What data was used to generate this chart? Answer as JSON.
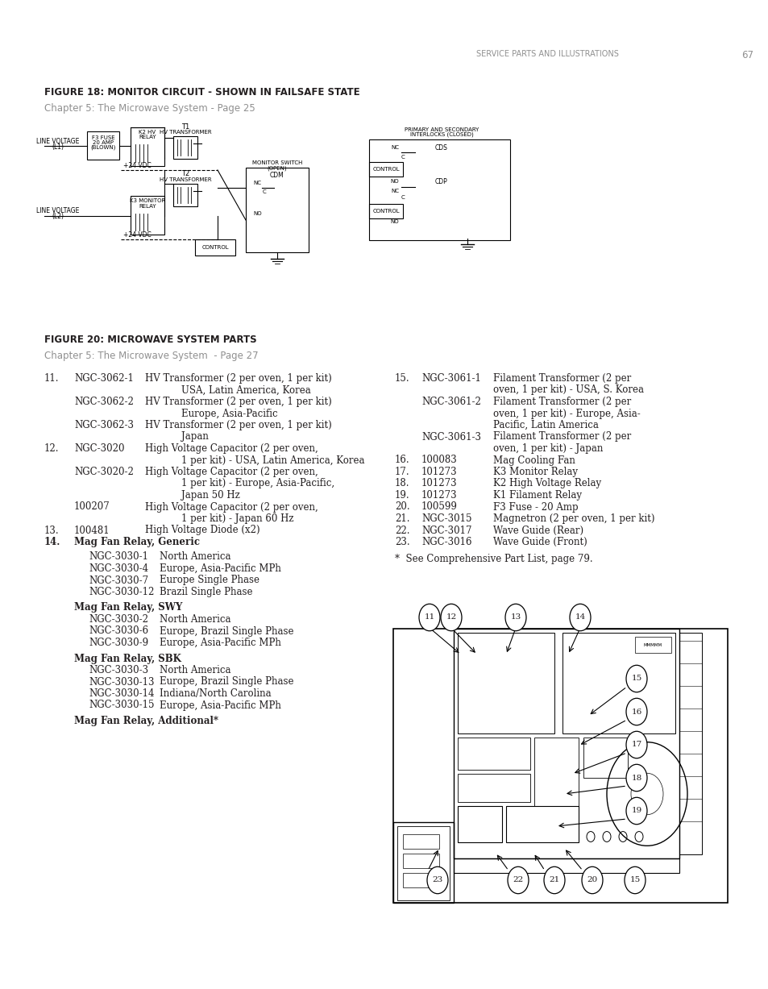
{
  "bg_color": "#ffffff",
  "text_color": "#231f20",
  "gray_color": "#909090",
  "header_text": "SERVICE PARTS AND ILLUSTRATIONS",
  "page_number": "67",
  "fig18_title": "FIGURE 18: MONITOR CIRCUIT - SHOWN IN FAILSAFE STATE",
  "fig18_subtitle": "Chapter 5: The Microwave System - Page 25",
  "fig20_title": "FIGURE 20: MICROWAVE SYSTEM PARTS",
  "fig20_subtitle": "Chapter 5: The Microwave System  - Page 27",
  "mag_generic_lines": [
    [
      "NGC-3030-1",
      "North America"
    ],
    [
      "NGC-3030-4",
      "Europe, Asia-Pacific MPh"
    ],
    [
      "NGC-3030-7",
      "Europe Single Phase"
    ],
    [
      "NGC-3030-12",
      "Brazil Single Phase"
    ]
  ],
  "mag_swy_lines": [
    [
      "NGC-3030-2",
      "North America"
    ],
    [
      "NGC-3030-6",
      "Europe, Brazil Single Phase"
    ],
    [
      "NGC-3030-9",
      "Europe, Asia-Pacific MPh"
    ]
  ],
  "mag_sbk_lines": [
    [
      "NGC-3030-3",
      "North America"
    ],
    [
      "NGC-3030-13",
      "Europe, Brazil Single Phase"
    ],
    [
      "NGC-3030-14",
      "Indiana/North Carolina"
    ],
    [
      "NGC-3030-15",
      "Europe, Asia-Pacific MPh"
    ]
  ],
  "mag_add_label": "Mag Fan Relay, Additional*",
  "items_col2": [
    [
      "16.",
      "100083",
      "Mag Cooling Fan"
    ],
    [
      "17.",
      "101273",
      "K3 Monitor Relay"
    ],
    [
      "18.",
      "101273",
      "K2 High Voltage Relay"
    ],
    [
      "19.",
      "101273",
      "K1 Filament Relay"
    ],
    [
      "20.",
      "100599",
      "F3 Fuse - 20 Amp"
    ],
    [
      "21.",
      "NGC-3015",
      "Magnetron (2 per oven, 1 per kit)"
    ],
    [
      "22.",
      "NGC-3017",
      "Wave Guide (Rear)"
    ],
    [
      "23.",
      "NGC-3016",
      "Wave Guide (Front)"
    ]
  ],
  "see_note": "*  See Comprehensive Part List, page 79."
}
